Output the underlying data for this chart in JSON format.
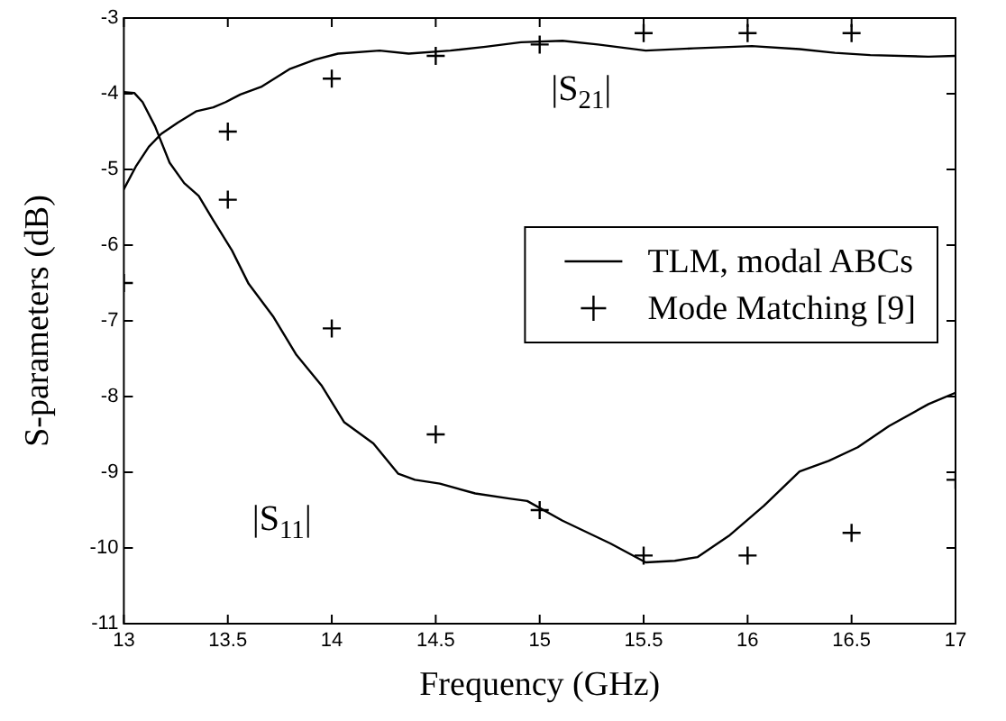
{
  "chart_data": {
    "type": "line",
    "xlabel": "Frequency (GHz)",
    "ylabel": "S-parameters (dB)",
    "xlim": [
      13,
      17
    ],
    "xticks": [
      13,
      13.5,
      14,
      14.5,
      15,
      15.5,
      16,
      16.5,
      17
    ],
    "ylim": [
      -11,
      -3
    ],
    "yticks": [
      -11,
      -10,
      -9,
      -8,
      -7,
      -6,
      -5,
      -4,
      -3
    ],
    "legend": "right",
    "line_style": "solid",
    "series": [
      {
        "name": "TLM, modal ABCs",
        "color": "#000000",
        "marker": "none",
        "x": [
          13,
          13.06,
          13.12,
          13.18,
          13.26,
          13.35,
          13.43,
          13.49,
          13.56,
          13.66,
          13.8,
          13.92,
          14.03,
          14.23,
          14.37,
          14.57,
          14.74,
          14.91,
          15.11,
          15.28,
          15.51,
          15.74,
          16.02,
          16.25,
          16.42,
          16.59,
          16.87,
          17
        ],
        "values": [
          -5.26,
          -4.95,
          -4.7,
          -4.53,
          -4.38,
          -4.23,
          -4.18,
          -4.11,
          -4.01,
          -3.91,
          -3.67,
          -3.55,
          -3.47,
          -3.43,
          -3.47,
          -3.43,
          -3.38,
          -3.32,
          -3.3,
          -3.35,
          -3.43,
          -3.4,
          -3.37,
          -3.41,
          -3.46,
          -3.49,
          -3.51,
          -3.5
        ]
      },
      {
        "color": "#000000",
        "marker": "none",
        "x": [
          13,
          13.05,
          13.09,
          13.15,
          13.22,
          13.29,
          13.36,
          13.43,
          13.52,
          13.6,
          13.72,
          13.83,
          13.95,
          14.06,
          14.2,
          14.32,
          14.4,
          14.52,
          14.69,
          14.86,
          14.94,
          15.11,
          15.34,
          15.51,
          15.65,
          15.76,
          15.91,
          16.08,
          16.25,
          16.39,
          16.53,
          16.68,
          16.87,
          17
        ],
        "values": [
          -3.98,
          -3.99,
          -4.11,
          -4.43,
          -4.91,
          -5.18,
          -5.35,
          -5.67,
          -6.07,
          -6.51,
          -6.95,
          -7.45,
          -7.85,
          -8.34,
          -8.62,
          -9.02,
          -9.1,
          -9.15,
          -9.28,
          -9.35,
          -9.38,
          -9.64,
          -9.94,
          -10.19,
          -10.17,
          -10.12,
          -9.84,
          -9.44,
          -8.99,
          -8.85,
          -8.67,
          -8.39,
          -8.1,
          -7.95
        ]
      },
      {
        "name": "Mode Matching [9]",
        "type": "scatter",
        "color": "#000000",
        "marker": "cross",
        "x": [
          13.5,
          14,
          14.5,
          15,
          15.5,
          16,
          16.5
        ],
        "values": [
          -4.5,
          -3.8,
          -3.5,
          -3.35,
          -3.2,
          -3.2,
          -3.2
        ]
      },
      {
        "type": "scatter",
        "color": "#000000",
        "marker": "cross",
        "x": [
          13,
          13.5,
          14,
          14.5,
          15,
          15.5,
          16,
          16.5,
          17
        ],
        "values": [
          -6.5,
          -5.4,
          -7.1,
          -8.5,
          -9.5,
          -10.1,
          -10.1,
          -9.8,
          -9.1
        ]
      }
    ],
    "annotations": [
      "|S$_{21}$|",
      "|S$_{11}$|"
    ]
  }
}
